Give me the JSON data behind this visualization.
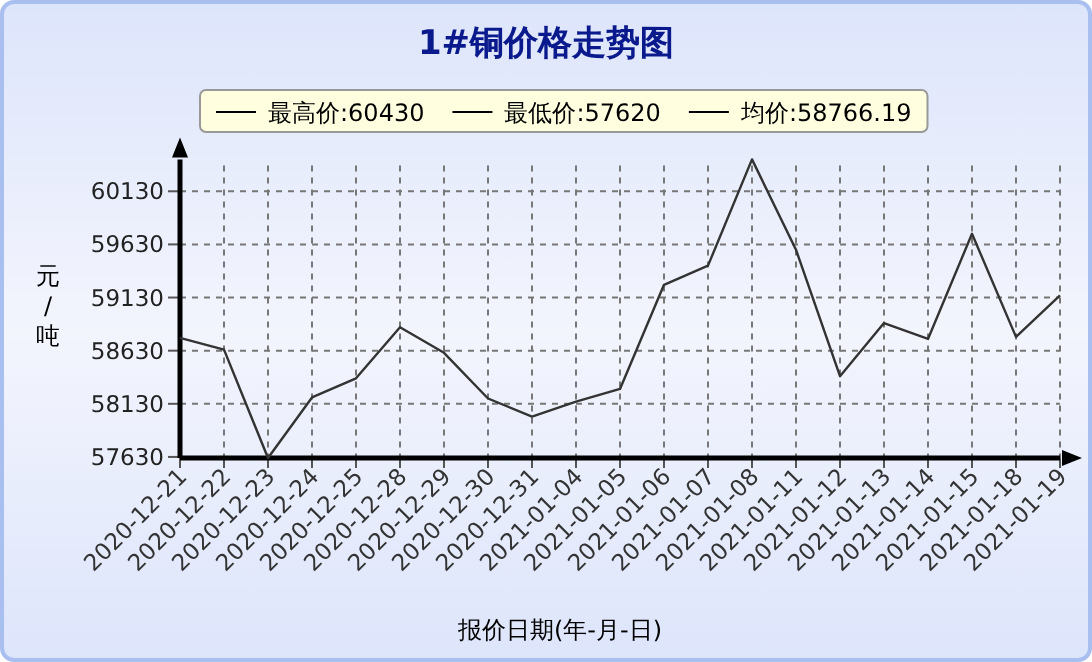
{
  "chart_data": {
    "type": "line",
    "title": "1#铜价格走势图",
    "xlabel": "报价日期(年-月-日)",
    "ylabel": "元/吨",
    "annotations": [
      "最高价:60430",
      "最低价:57620",
      "均价:58766.19"
    ],
    "categories": [
      "2020-12-21",
      "2020-12-22",
      "2020-12-23",
      "2020-12-24",
      "2020-12-25",
      "2020-12-28",
      "2020-12-29",
      "2020-12-30",
      "2020-12-31",
      "2021-01-04",
      "2021-01-05",
      "2021-01-06",
      "2021-01-07",
      "2021-01-08",
      "2021-01-11",
      "2021-01-12",
      "2021-01-13",
      "2021-01-14",
      "2021-01-15",
      "2021-01-18",
      "2021-01-19"
    ],
    "series": [
      {
        "color": "#333333",
        "values": [
          58750,
          58640,
          57620,
          58190,
          58370,
          58850,
          58610,
          58180,
          58010,
          58150,
          58270,
          59250,
          59430,
          60430,
          59580,
          58390,
          58890,
          58740,
          59730,
          58760,
          59150
        ]
      }
    ],
    "ylim": [
      57620,
      60430
    ],
    "yticks": [
      57630,
      58130,
      58630,
      59130,
      59630,
      60130
    ],
    "grid": true,
    "marker": "none",
    "line_style": "solid"
  }
}
